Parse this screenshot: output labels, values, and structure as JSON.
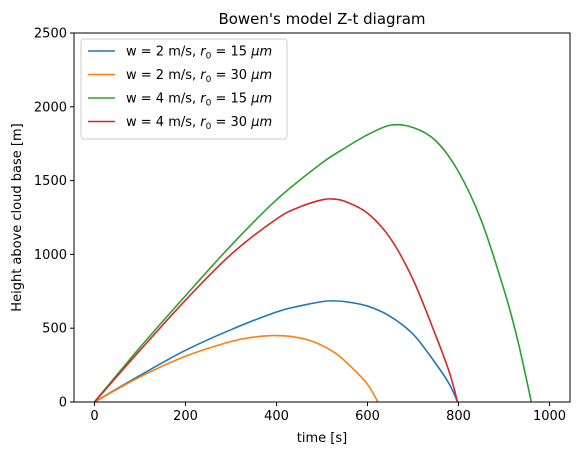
{
  "chart_data": {
    "type": "line",
    "title": "Bowen's model Z-t diagram",
    "xlabel": "time [s]",
    "ylabel": "Height above cloud base [m]",
    "xlim": [
      -45,
      1045
    ],
    "ylim": [
      0,
      2500
    ],
    "xticks": [
      0,
      200,
      400,
      600,
      800,
      1000
    ],
    "yticks": [
      0,
      500,
      1000,
      1500,
      2000,
      2500
    ],
    "grid": false,
    "legend_position": "top-left",
    "series": [
      {
        "name": "w = 2 m/s, r0 = 15 μm",
        "legend": {
          "prefix": "w = 2 m/s, ",
          "sym": "r",
          "sub": "0",
          "mid": " = 15 ",
          "unit": "μm"
        },
        "color": "#1f77b4",
        "x": [
          0,
          100,
          200,
          300,
          400,
          450,
          500,
          520,
          550,
          600,
          650,
          700,
          750,
          780,
          798
        ],
        "y": [
          0,
          180,
          350,
          490,
          610,
          650,
          680,
          685,
          680,
          650,
          580,
          460,
          260,
          120,
          0
        ]
      },
      {
        "name": "w = 2 m/s, r0 = 30 μm",
        "legend": {
          "prefix": "w = 2 m/s, ",
          "sym": "r",
          "sub": "0",
          "mid": " = 30 ",
          "unit": "μm"
        },
        "color": "#ff7f0e",
        "x": [
          0,
          100,
          200,
          300,
          350,
          390,
          430,
          480,
          530,
          570,
          600,
          623
        ],
        "y": [
          0,
          170,
          310,
          410,
          440,
          450,
          445,
          410,
          330,
          220,
          120,
          0
        ]
      },
      {
        "name": "w = 4 m/s, r0 = 15 μm",
        "legend": {
          "prefix": "w = 4 m/s, ",
          "sym": "r",
          "sub": "0",
          "mid": " = 15 ",
          "unit": "μm"
        },
        "color": "#2ca02c",
        "x": [
          0,
          100,
          200,
          300,
          400,
          500,
          550,
          600,
          650,
          700,
          750,
          800,
          850,
          900,
          930,
          960
        ],
        "y": [
          0,
          370,
          720,
          1060,
          1370,
          1620,
          1720,
          1810,
          1875,
          1860,
          1770,
          1560,
          1230,
          760,
          420,
          0
        ]
      },
      {
        "name": "w = 4 m/s, r0 = 30 μm",
        "legend": {
          "prefix": "w = 4 m/s, ",
          "sym": "r",
          "sub": "0",
          "mid": " = 30 ",
          "unit": "μm"
        },
        "color": "#d62728",
        "x": [
          0,
          100,
          200,
          300,
          400,
          450,
          500,
          525,
          550,
          600,
          650,
          700,
          750,
          780,
          798
        ],
        "y": [
          0,
          350,
          690,
          1000,
          1240,
          1320,
          1370,
          1375,
          1360,
          1280,
          1110,
          830,
          450,
          200,
          0
        ]
      }
    ]
  }
}
